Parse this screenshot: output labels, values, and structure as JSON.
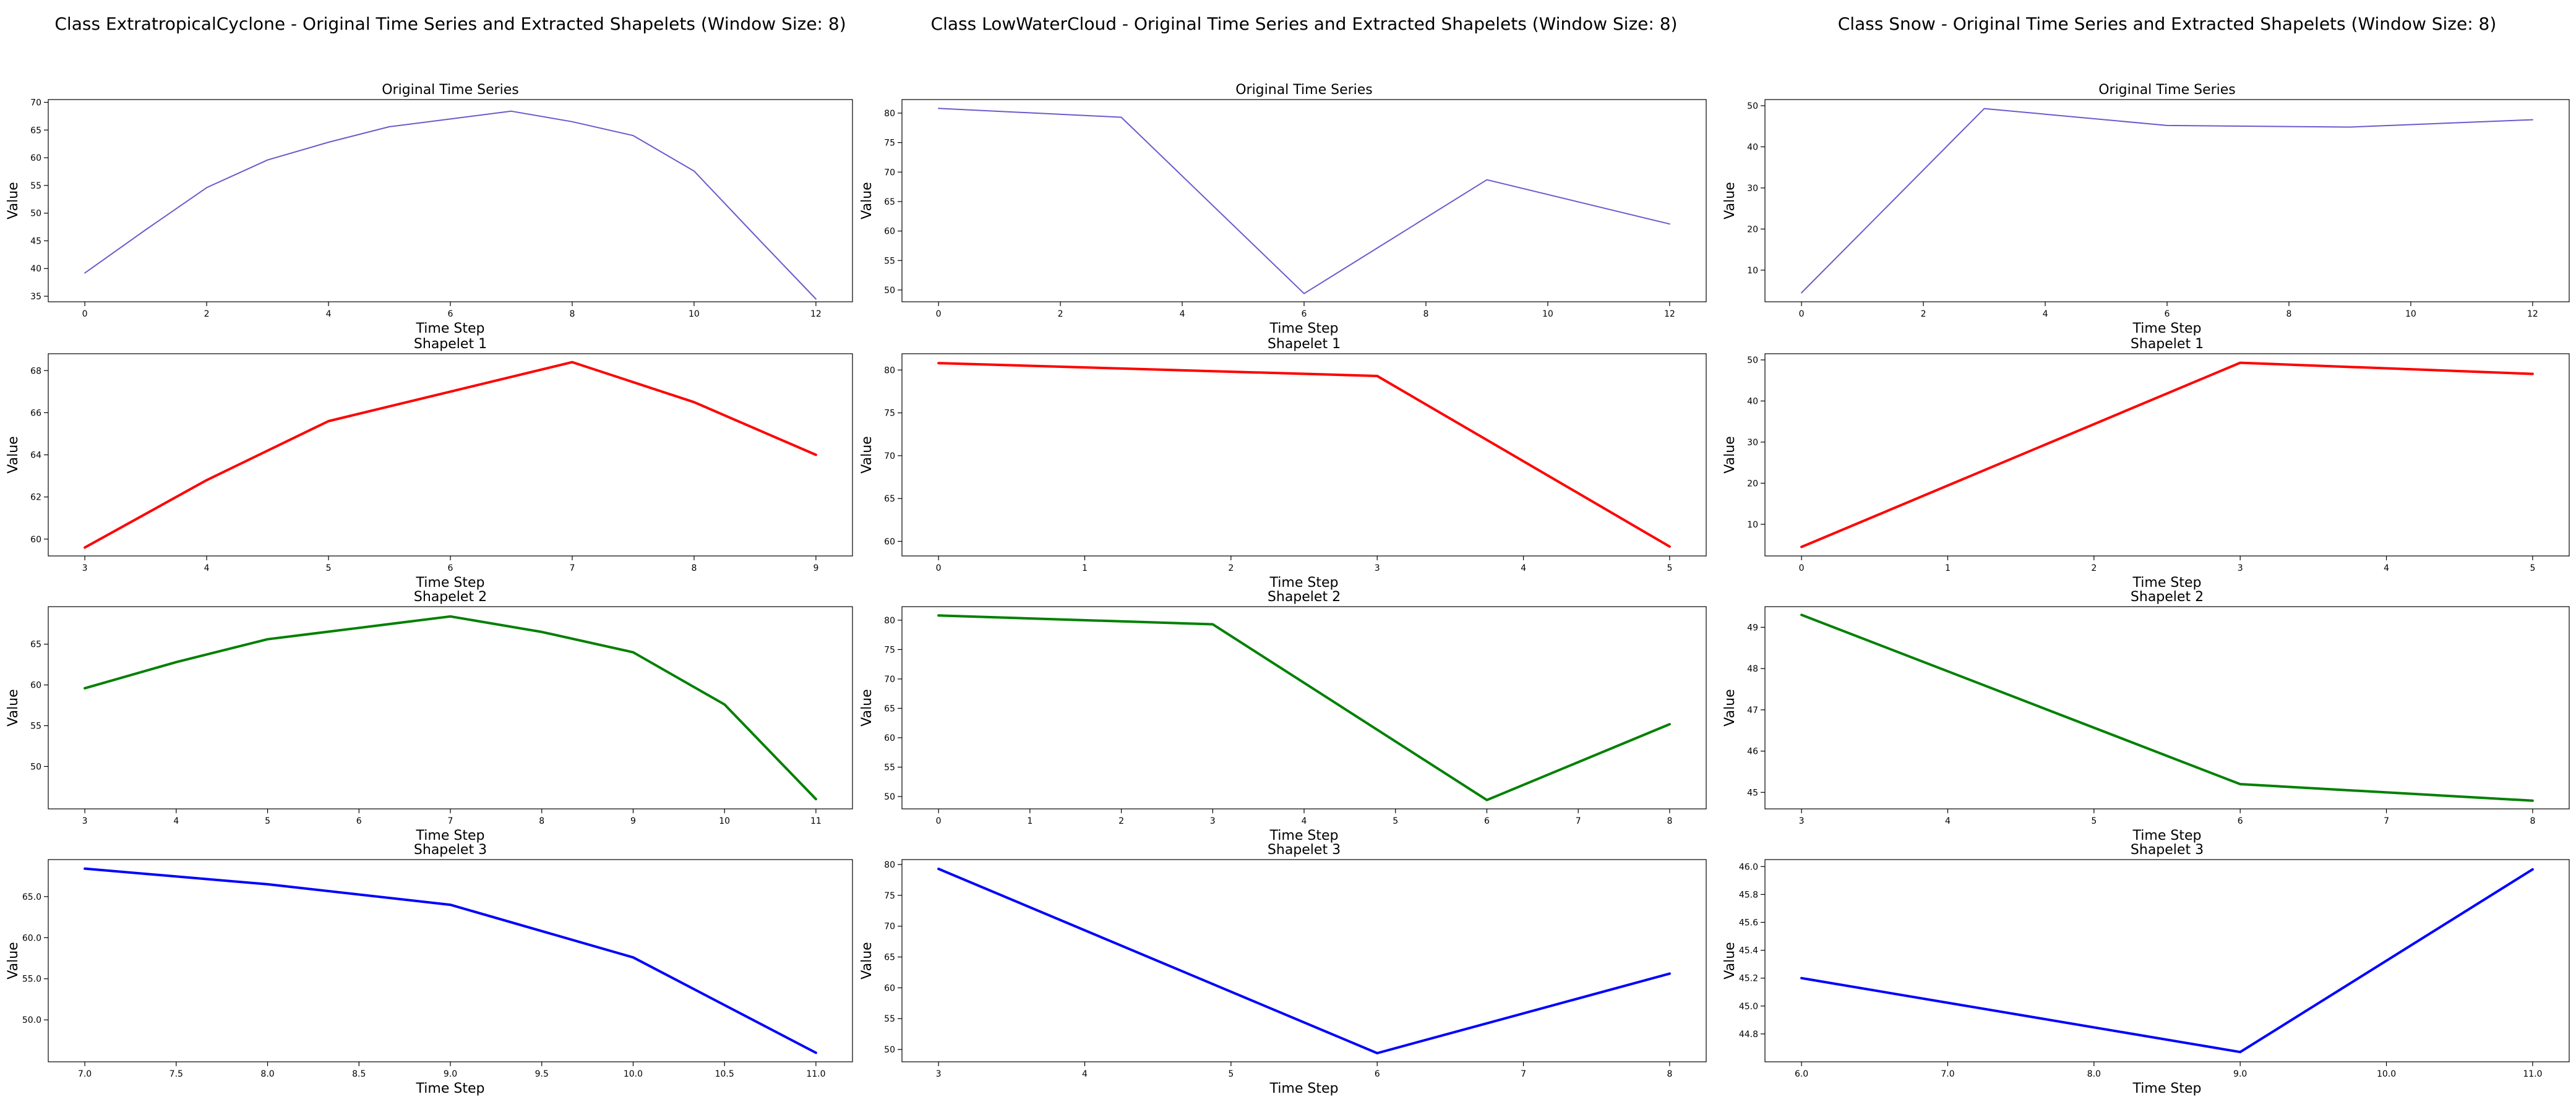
{
  "figure": {
    "background": "#ffffff"
  },
  "colors": {
    "original": "#6a5acd",
    "shapelet1": "#ff0000",
    "shapelet2": "#008000",
    "shapelet3": "#0000ff",
    "axis": "#000000"
  },
  "chart_data": [
    {
      "group": "ExtratropicalCyclone",
      "title": "Class ExtratropicalCyclone - Original Time Series and Extracted Shapelets (Window Size: 8)",
      "panels": [
        {
          "type": "line",
          "title": "Original Time Series",
          "xlabel": "Time Step",
          "ylabel": "Value",
          "color": "#6a5acd",
          "x": [
            0,
            1,
            2,
            3,
            4,
            5,
            6,
            7,
            8,
            9,
            10,
            11,
            12
          ],
          "y": [
            39.2,
            47.0,
            54.6,
            59.6,
            62.8,
            65.6,
            67.0,
            68.4,
            66.5,
            64.0,
            57.6,
            46.0,
            34.5
          ],
          "xlim": [
            -0.6,
            12.6
          ],
          "ylim": [
            34.0,
            70.5
          ],
          "xticks": [
            0,
            2,
            4,
            6,
            8,
            10,
            12
          ],
          "yticks": [
            35,
            40,
            45,
            50,
            55,
            60,
            65,
            70
          ]
        },
        {
          "type": "line",
          "title": "Shapelet 1",
          "xlabel": "Time Step",
          "ylabel": "Value",
          "color": "#ff0000",
          "x": [
            3,
            4,
            5,
            6,
            7,
            8,
            9
          ],
          "y": [
            59.6,
            62.8,
            65.6,
            67.0,
            68.4,
            66.5,
            64.0
          ],
          "xlim": [
            2.7,
            9.3
          ],
          "ylim": [
            59.2,
            68.8
          ],
          "xticks": [
            3,
            4,
            5,
            6,
            7,
            8,
            9
          ],
          "yticks": [
            60,
            62,
            64,
            66,
            68
          ]
        },
        {
          "type": "line",
          "title": "Shapelet 2",
          "xlabel": "Time Step",
          "ylabel": "Value",
          "color": "#008000",
          "x": [
            3,
            4,
            5,
            6,
            7,
            8,
            9,
            10,
            11
          ],
          "y": [
            59.6,
            62.8,
            65.6,
            67.0,
            68.4,
            66.5,
            64.0,
            57.6,
            46.0
          ],
          "xlim": [
            2.6,
            11.4
          ],
          "ylim": [
            44.8,
            69.6
          ],
          "xticks": [
            3,
            4,
            5,
            6,
            7,
            8,
            9,
            10,
            11
          ],
          "yticks": [
            50,
            55,
            60,
            65
          ]
        },
        {
          "type": "line",
          "title": "Shapelet 3",
          "xlabel": "Time Step",
          "ylabel": "Value",
          "color": "#0000ff",
          "x": [
            7.0,
            8.0,
            9.0,
            10.0,
            11.0
          ],
          "y": [
            68.4,
            66.5,
            64.0,
            57.6,
            46.0
          ],
          "xlim": [
            6.8,
            11.2
          ],
          "ylim": [
            44.9,
            69.5
          ],
          "xticks": [
            7.0,
            7.5,
            8.0,
            8.5,
            9.0,
            9.5,
            10.0,
            10.5,
            11.0
          ],
          "yticks": [
            50,
            55,
            60,
            65
          ],
          "tickdecimals": 1
        }
      ]
    },
    {
      "group": "LowWaterCloud",
      "title": "Class LowWaterCloud - Original Time Series and Extracted Shapelets (Window Size: 8)",
      "panels": [
        {
          "type": "line",
          "title": "Original Time Series",
          "xlabel": "Time Step",
          "ylabel": "Value",
          "color": "#6a5acd",
          "x": [
            0,
            3,
            6,
            9,
            12
          ],
          "y": [
            80.8,
            79.3,
            49.4,
            68.7,
            61.2
          ],
          "xlim": [
            -0.6,
            12.6
          ],
          "ylim": [
            48.0,
            82.3
          ],
          "xticks": [
            0,
            2,
            4,
            6,
            8,
            10,
            12
          ],
          "yticks": [
            50,
            55,
            60,
            65,
            70,
            75,
            80
          ]
        },
        {
          "type": "line",
          "title": "Shapelet 1",
          "xlabel": "Time Step",
          "ylabel": "Value",
          "color": "#ff0000",
          "x": [
            0,
            3,
            5
          ],
          "y": [
            80.8,
            79.3,
            59.4
          ],
          "xlim": [
            -0.25,
            5.25
          ],
          "ylim": [
            58.3,
            81.9
          ],
          "xticks": [
            0,
            1,
            2,
            3,
            4,
            5
          ],
          "yticks": [
            60,
            65,
            70,
            75,
            80
          ]
        },
        {
          "type": "line",
          "title": "Shapelet 2",
          "xlabel": "Time Step",
          "ylabel": "Value",
          "color": "#008000",
          "x": [
            0,
            3,
            6,
            8
          ],
          "y": [
            80.8,
            79.3,
            49.4,
            62.3
          ],
          "xlim": [
            -0.4,
            8.4
          ],
          "ylim": [
            47.9,
            82.3
          ],
          "xticks": [
            0,
            1,
            2,
            3,
            4,
            5,
            6,
            7,
            8
          ],
          "yticks": [
            50,
            55,
            60,
            65,
            70,
            75,
            80
          ]
        },
        {
          "type": "line",
          "title": "Shapelet 3",
          "xlabel": "Time Step",
          "ylabel": "Value",
          "color": "#0000ff",
          "x": [
            3,
            6,
            8
          ],
          "y": [
            79.3,
            49.4,
            62.3
          ],
          "xlim": [
            2.75,
            8.25
          ],
          "ylim": [
            48.0,
            80.8
          ],
          "xticks": [
            3,
            4,
            5,
            6,
            7,
            8
          ],
          "yticks": [
            50,
            55,
            60,
            65,
            70,
            75,
            80
          ]
        }
      ]
    },
    {
      "group": "Snow",
      "title": "Class Snow - Original Time Series and Extracted Shapelets (Window Size: 8)",
      "panels": [
        {
          "type": "line",
          "title": "Original Time Series",
          "xlabel": "Time Step",
          "ylabel": "Value",
          "color": "#6a5acd",
          "x": [
            0,
            3,
            6,
            9,
            12
          ],
          "y": [
            4.5,
            49.3,
            45.2,
            44.8,
            46.6
          ],
          "xlim": [
            -0.6,
            12.6
          ],
          "ylim": [
            2.3,
            51.5
          ],
          "xticks": [
            0,
            2,
            4,
            6,
            8,
            10,
            12
          ],
          "yticks": [
            10,
            20,
            30,
            40,
            50
          ]
        },
        {
          "type": "line",
          "title": "Shapelet 1",
          "xlabel": "Time Step",
          "ylabel": "Value",
          "color": "#ff0000",
          "x": [
            0,
            3,
            5
          ],
          "y": [
            4.5,
            49.3,
            46.6
          ],
          "xlim": [
            -0.25,
            5.25
          ],
          "ylim": [
            2.3,
            51.5
          ],
          "xticks": [
            0,
            1,
            2,
            3,
            4,
            5
          ],
          "yticks": [
            10,
            20,
            30,
            40,
            50
          ]
        },
        {
          "type": "line",
          "title": "Shapelet 2",
          "xlabel": "Time Step",
          "ylabel": "Value",
          "color": "#008000",
          "x": [
            3,
            6,
            8
          ],
          "y": [
            49.3,
            45.2,
            44.8
          ],
          "xlim": [
            2.75,
            8.25
          ],
          "ylim": [
            44.6,
            49.5
          ],
          "xticks": [
            3,
            4,
            5,
            6,
            7,
            8
          ],
          "yticks": [
            45,
            46,
            47,
            48,
            49
          ]
        },
        {
          "type": "line",
          "title": "Shapelet 3",
          "xlabel": "Time Step",
          "ylabel": "Value",
          "color": "#0000ff",
          "x": [
            6,
            9,
            11
          ],
          "y": [
            45.2,
            44.67,
            45.98
          ],
          "xlim": [
            5.75,
            11.25
          ],
          "ylim": [
            44.6,
            46.05
          ],
          "xticks": [
            6,
            7,
            8,
            9,
            10,
            11
          ],
          "yticks": [
            44.8,
            45.0,
            45.2,
            45.4,
            45.6,
            45.8,
            46.0
          ],
          "tickdecimals": 1
        }
      ]
    }
  ]
}
